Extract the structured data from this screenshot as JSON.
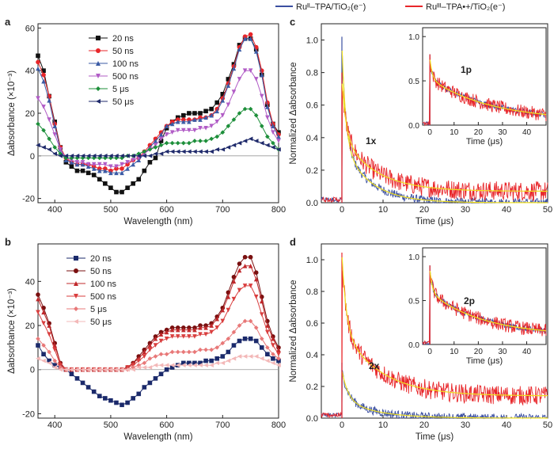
{
  "figure": {
    "legend_top": [
      {
        "label": "Ruᴵᴵ–TPA/TiO₂(e⁻)",
        "color": "#3b4fa0"
      },
      {
        "label": "Ruᴵᴵᴵ–TPA•+/TiO₂(e⁻)",
        "color": "#e8262a"
      }
    ],
    "fit_color": "#f0e020"
  },
  "chart_data": [
    {
      "panel": "a",
      "type": "line",
      "xlabel": "Wavelength (nm)",
      "ylabel": "Δabsorbance (×10⁻³)",
      "xlim": [
        370,
        800
      ],
      "ylim": [
        -22,
        62
      ],
      "xticks": [
        400,
        500,
        600,
        700,
        800
      ],
      "yticks": [
        -20,
        0,
        20,
        40,
        60
      ],
      "x": [
        370,
        380,
        390,
        400,
        410,
        420,
        430,
        440,
        450,
        460,
        470,
        480,
        490,
        500,
        510,
        520,
        530,
        540,
        550,
        560,
        570,
        580,
        590,
        600,
        610,
        620,
        630,
        640,
        650,
        660,
        670,
        680,
        690,
        700,
        710,
        720,
        730,
        740,
        750,
        760,
        770,
        780,
        790,
        800
      ],
      "series": [
        {
          "name": "20 ns",
          "color": "#111111",
          "marker": "square",
          "values": [
            47,
            40,
            28,
            16,
            4,
            -3,
            -5,
            -7,
            -7,
            -8,
            -9,
            -11,
            -13,
            -15,
            -17,
            -17,
            -15,
            -13,
            -11,
            -7,
            -3,
            -1,
            7,
            13,
            16,
            18,
            19,
            20,
            20,
            20,
            21,
            22,
            25,
            29,
            36,
            43,
            52,
            55,
            55,
            50,
            38,
            24,
            15,
            11
          ]
        },
        {
          "name": "50 ns",
          "color": "#e8262a",
          "marker": "circle",
          "values": [
            44,
            38,
            28,
            15,
            4,
            -1,
            -3,
            -4,
            -4,
            -4,
            -5,
            -6,
            -6,
            -7,
            -6,
            -6,
            -4,
            -2,
            -1,
            2,
            5,
            8,
            11,
            14,
            16,
            17,
            17,
            17,
            17,
            18,
            18,
            19,
            22,
            27,
            34,
            42,
            51,
            56,
            57,
            51,
            40,
            25,
            15,
            10
          ]
        },
        {
          "name": "100 ns",
          "color": "#3b5ba5",
          "marker": "triangle",
          "values": [
            41,
            35,
            26,
            14,
            3,
            -2,
            -3,
            -4,
            -4,
            -5,
            -6,
            -7,
            -7,
            -8,
            -8,
            -8,
            -6,
            -4,
            -2,
            1,
            4,
            7,
            10,
            14,
            15,
            16,
            16,
            16,
            17,
            17,
            18,
            19,
            21,
            26,
            33,
            41,
            50,
            55,
            55,
            49,
            38,
            23,
            14,
            9
          ]
        },
        {
          "name": "500 ns",
          "color": "#b15cc6",
          "marker": "triangle-down",
          "values": [
            27,
            23,
            17,
            10,
            3,
            -1,
            -2,
            -3,
            -3,
            -4,
            -4,
            -4,
            -4,
            -5,
            -5,
            -4,
            -3,
            -2,
            -1,
            1,
            3,
            5,
            8,
            10,
            11,
            12,
            12,
            12,
            12,
            13,
            13,
            14,
            16,
            19,
            24,
            30,
            36,
            40,
            40,
            36,
            28,
            18,
            11,
            7
          ]
        },
        {
          "name": "5 μs",
          "color": "#1d8f3a",
          "marker": "diamond",
          "values": [
            15,
            12,
            8,
            4,
            1,
            -1,
            -1,
            -1,
            -1,
            -1,
            -1,
            -1,
            -1,
            -1,
            -1,
            -1,
            0,
            0,
            1,
            2,
            3,
            4,
            5,
            6,
            6,
            6,
            6,
            6,
            7,
            7,
            7,
            8,
            9,
            11,
            14,
            17,
            20,
            22,
            22,
            19,
            14,
            9,
            6,
            3
          ]
        },
        {
          "name": "50 μs",
          "color": "#1f2a6b",
          "marker": "triangle-left",
          "values": [
            5,
            4,
            3,
            1,
            0,
            0,
            0,
            0,
            0,
            0,
            0,
            0,
            0,
            0,
            0,
            0,
            0,
            0,
            0,
            0,
            0,
            1,
            1,
            2,
            2,
            2,
            2,
            2,
            2,
            2,
            2,
            2,
            3,
            3,
            4,
            5,
            6,
            7,
            8,
            7,
            6,
            5,
            4,
            3
          ]
        }
      ]
    },
    {
      "panel": "b",
      "type": "line",
      "xlabel": "Wavelength (nm)",
      "ylabel": "Δabsorbance (×10⁻³)",
      "xlim": [
        370,
        800
      ],
      "ylim": [
        -22,
        57
      ],
      "xticks": [
        400,
        500,
        600,
        700,
        800
      ],
      "yticks": [
        -20,
        0,
        20,
        40
      ],
      "x": [
        370,
        380,
        390,
        400,
        410,
        420,
        430,
        440,
        450,
        460,
        470,
        480,
        490,
        500,
        510,
        520,
        530,
        540,
        550,
        560,
        570,
        580,
        590,
        600,
        610,
        620,
        630,
        640,
        650,
        660,
        670,
        680,
        690,
        700,
        710,
        720,
        730,
        740,
        750,
        760,
        770,
        780,
        790,
        800
      ],
      "series": [
        {
          "name": "20 ns",
          "color": "#1b2a6b",
          "marker": "square",
          "values": [
            11,
            7,
            4,
            2,
            1,
            0,
            -2,
            -4,
            -6,
            -8,
            -10,
            -12,
            -13,
            -14,
            -15,
            -16,
            -15,
            -13,
            -11,
            -8,
            -6,
            -4,
            -2,
            0,
            1,
            2,
            3,
            3,
            3,
            3,
            4,
            4,
            5,
            6,
            8,
            11,
            13,
            14,
            14,
            13,
            10,
            7,
            5,
            4
          ]
        },
        {
          "name": "50 ns",
          "color": "#7a1010",
          "marker": "circle",
          "values": [
            34,
            28,
            21,
            12,
            3,
            0,
            0,
            0,
            0,
            0,
            0,
            0,
            0,
            0,
            0,
            0,
            1,
            3,
            6,
            9,
            12,
            15,
            17,
            18,
            19,
            19,
            19,
            19,
            19,
            20,
            20,
            21,
            24,
            28,
            35,
            42,
            48,
            51,
            51,
            44,
            33,
            22,
            15,
            10
          ]
        },
        {
          "name": "100 ns",
          "color": "#c0282b",
          "marker": "triangle",
          "values": [
            32,
            26,
            20,
            11,
            3,
            0,
            0,
            0,
            0,
            0,
            0,
            0,
            0,
            0,
            0,
            0,
            1,
            3,
            5,
            8,
            11,
            14,
            16,
            17,
            18,
            18,
            18,
            18,
            18,
            19,
            19,
            20,
            23,
            27,
            33,
            40,
            45,
            47,
            47,
            41,
            31,
            20,
            14,
            9
          ]
        },
        {
          "name": "500 ns",
          "color": "#d93e3e",
          "marker": "triangle-down",
          "values": [
            26,
            21,
            16,
            9,
            2,
            0,
            0,
            0,
            0,
            0,
            0,
            0,
            0,
            0,
            0,
            0,
            1,
            2,
            4,
            6,
            9,
            11,
            13,
            14,
            15,
            15,
            15,
            15,
            15,
            16,
            16,
            17,
            19,
            22,
            27,
            32,
            36,
            38,
            38,
            33,
            25,
            17,
            11,
            7
          ]
        },
        {
          "name": "5 μs",
          "color": "#e87878",
          "marker": "diamond",
          "values": [
            14,
            11,
            8,
            4,
            1,
            0,
            0,
            0,
            0,
            0,
            0,
            0,
            0,
            0,
            0,
            0,
            0,
            1,
            2,
            3,
            5,
            6,
            7,
            7,
            8,
            8,
            8,
            8,
            8,
            9,
            9,
            9,
            10,
            12,
            14,
            17,
            20,
            22,
            22,
            19,
            14,
            10,
            7,
            5
          ]
        },
        {
          "name": "50 μs",
          "color": "#f3b8b8",
          "marker": "triangle-left",
          "values": [
            5,
            4,
            3,
            1,
            0,
            0,
            0,
            0,
            0,
            0,
            0,
            0,
            0,
            0,
            0,
            0,
            0,
            0,
            1,
            1,
            1,
            2,
            2,
            2,
            2,
            2,
            2,
            2,
            2,
            2,
            2,
            2,
            3,
            3,
            4,
            5,
            6,
            6,
            6,
            6,
            5,
            4,
            3,
            2
          ]
        }
      ]
    },
    {
      "panel": "c",
      "type": "line",
      "label": "1x",
      "xlabel": "Time (μs)",
      "ylabel": "Normalized Δabsorbance",
      "xlim": [
        -5,
        50
      ],
      "ylim": [
        0,
        1.1
      ],
      "xticks": [
        0,
        10,
        20,
        30,
        40,
        50
      ],
      "yticks": [
        0.0,
        0.2,
        0.4,
        0.6,
        0.8,
        1.0
      ],
      "ytick_labels": [
        "0.0",
        "0.2",
        "0.4",
        "0.6",
        "0.8",
        "1.0"
      ],
      "kinetics": {
        "blue": {
          "amp": 0.97,
          "fast": 0.62,
          "tau_fast": 0.9,
          "tau_slow": 6.5,
          "floor": 0.0
        },
        "red": {
          "amp": 0.75,
          "fast": 0.45,
          "tau_fast": 1.0,
          "tau_slow": 8.0,
          "floor": 0.07
        }
      },
      "inset": {
        "label": "1p",
        "xlabel": "Time (μs)",
        "xlim": [
          -3,
          48
        ],
        "ylim": [
          0,
          1.1
        ],
        "xticks": [
          0,
          10,
          20,
          30,
          40
        ],
        "yticks": [
          0.0,
          0.5,
          1.0
        ],
        "ytick_labels": [
          "0.0",
          "0.5",
          "1.0"
        ],
        "kinetics": {
          "blue": {
            "amp": 0.75,
            "fast": 0.3,
            "tau_fast": 1.0,
            "tau_slow": 25,
            "floor": 0.05
          },
          "red": {
            "amp": 0.75,
            "fast": 0.3,
            "tau_fast": 1.0,
            "tau_slow": 25,
            "floor": 0.05
          }
        }
      }
    },
    {
      "panel": "d",
      "type": "line",
      "label": "2x",
      "xlabel": "Time (μs)",
      "ylabel": "Normalized Δabsorbance",
      "xlim": [
        -5,
        50
      ],
      "ylim": [
        0,
        1.1
      ],
      "xticks": [
        0,
        10,
        20,
        30,
        40,
        50
      ],
      "yticks": [
        0.0,
        0.2,
        0.4,
        0.6,
        0.8,
        1.0
      ],
      "ytick_labels": [
        "0.0",
        "0.2",
        "0.4",
        "0.6",
        "0.8",
        "1.0"
      ],
      "kinetics": {
        "blue": {
          "amp": 0.3,
          "fast": 0.6,
          "tau_fast": 1.5,
          "tau_slow": 8.0,
          "floor": 0.0
        },
        "red": {
          "amp": 1.04,
          "fast": 0.45,
          "tau_fast": 1.0,
          "tau_slow": 9.0,
          "floor": 0.14
        }
      },
      "inset": {
        "label": "2p",
        "xlabel": "Time (μs)",
        "xlim": [
          -3,
          48
        ],
        "ylim": [
          0,
          1.1
        ],
        "xticks": [
          0,
          10,
          20,
          30,
          40
        ],
        "yticks": [
          0.0,
          0.5,
          1.0
        ],
        "ytick_labels": [
          "0.0",
          "0.5",
          "1.0"
        ],
        "kinetics": {
          "blue": {
            "amp": 0.85,
            "fast": 0.3,
            "tau_fast": 1.0,
            "tau_slow": 22,
            "floor": 0.1
          },
          "red": {
            "amp": 0.85,
            "fast": 0.3,
            "tau_fast": 1.0,
            "tau_slow": 22,
            "floor": 0.1
          }
        }
      }
    }
  ]
}
